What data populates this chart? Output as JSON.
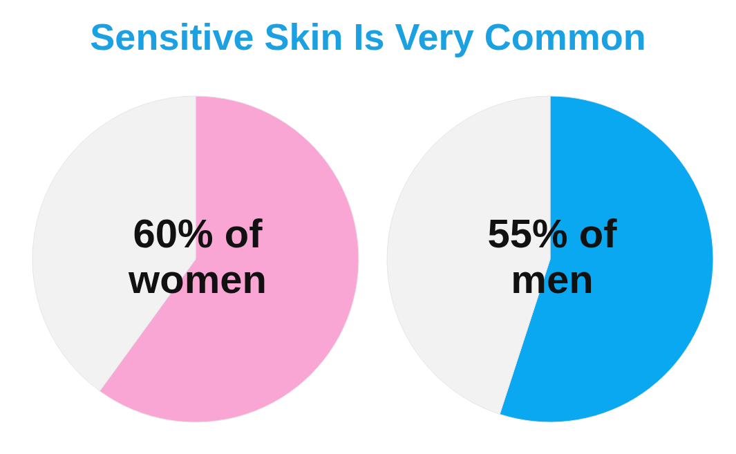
{
  "chart_data": [
    {
      "type": "pie",
      "title": "Sensitive Skin Is Very Common",
      "categories": [
        null,
        null
      ],
      "values": [
        60,
        40
      ],
      "colors": [
        "#f9a6d5",
        "#f2f2f2"
      ],
      "annotations": [
        "60% of women"
      ]
    },
    {
      "type": "pie",
      "categories": [
        null,
        null
      ],
      "values": [
        55,
        45
      ],
      "colors": [
        "#0aa8f0",
        "#f2f2f2"
      ],
      "annotations": [
        "55% of men"
      ]
    }
  ]
}
